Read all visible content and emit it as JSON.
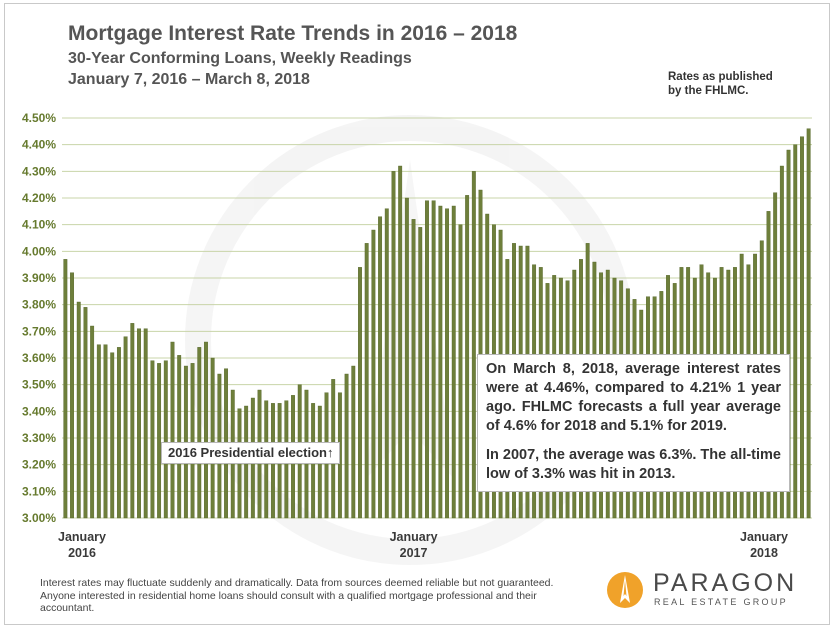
{
  "header": {
    "title": "Mortgage Interest Rate Trends in 2016 – 2018",
    "subtitle": "30-Year Conforming Loans, Weekly Readings",
    "date_range": "January 7, 2016 – March 8, 2018",
    "source_line1": "Rates as published",
    "source_line2": "by the FHLMC."
  },
  "annotations": {
    "note_paragraph_1": "On March 8, 2018, average interest rates were  at 4.46%, compared to 4.21% 1 year ago. FHLMC forecasts a full year average of 4.6% for 2018 and 5.1% for 2019.",
    "note_paragraph_2": "In 2007, the average was 6.3%. The all-time low of 3.3% was hit in 2013.",
    "election_label": "2016 Presidential election↑"
  },
  "footer": {
    "disclaimer": "Interest rates may fluctuate suddenly and dramatically. Data from sources deemed reliable but not guaranteed. Anyone interested in residential home loans should consult with a qualified mortgage professional and their accountant."
  },
  "logo": {
    "name": "PARAGON",
    "tagline": "REAL ESTATE GROUP"
  },
  "colors": {
    "bar": "#6e7f3b",
    "bar_edge": "#55652a",
    "gridline": "#c8d4a8",
    "tick_label": "#667a2e",
    "logo_orange": "#f0a22a"
  },
  "chart_data": {
    "type": "bar",
    "title": "Mortgage Interest Rate Trends in 2016 – 2018",
    "xlabel": "",
    "ylabel": "",
    "ylim": [
      3.0,
      4.5
    ],
    "yticks": [
      3.0,
      3.1,
      3.2,
      3.3,
      3.4,
      3.5,
      3.6,
      3.7,
      3.8,
      3.9,
      4.0,
      4.1,
      4.2,
      4.3,
      4.4,
      4.5
    ],
    "ytick_labels": [
      "3.00%",
      "3.10%",
      "3.20%",
      "3.30%",
      "3.40%",
      "3.50%",
      "3.60%",
      "3.70%",
      "3.80%",
      "3.90%",
      "4.00%",
      "4.10%",
      "4.20%",
      "4.30%",
      "4.40%",
      "4.50%"
    ],
    "x_labels": [
      {
        "line1": "January",
        "line2": "2016",
        "index": 0
      },
      {
        "line1": "January",
        "line2": "2017",
        "index": 52
      },
      {
        "line1": "January",
        "line2": "2018",
        "index": 104
      }
    ],
    "grid": true,
    "values": [
      3.97,
      3.92,
      3.81,
      3.79,
      3.72,
      3.65,
      3.65,
      3.62,
      3.64,
      3.68,
      3.73,
      3.71,
      3.71,
      3.59,
      3.58,
      3.59,
      3.66,
      3.61,
      3.57,
      3.58,
      3.64,
      3.66,
      3.6,
      3.54,
      3.56,
      3.48,
      3.41,
      3.42,
      3.45,
      3.48,
      3.44,
      3.43,
      3.43,
      3.44,
      3.46,
      3.5,
      3.48,
      3.43,
      3.42,
      3.47,
      3.52,
      3.47,
      3.54,
      3.57,
      3.94,
      4.03,
      4.08,
      4.13,
      4.16,
      4.3,
      4.32,
      4.2,
      4.12,
      4.09,
      4.19,
      4.19,
      4.17,
      4.16,
      4.17,
      4.1,
      4.21,
      4.3,
      4.23,
      4.14,
      4.1,
      4.08,
      3.97,
      4.03,
      4.02,
      4.02,
      3.95,
      3.94,
      3.88,
      3.91,
      3.9,
      3.89,
      3.93,
      3.97,
      4.03,
      3.96,
      3.92,
      3.93,
      3.9,
      3.89,
      3.86,
      3.82,
      3.78,
      3.83,
      3.83,
      3.85,
      3.91,
      3.88,
      3.94,
      3.94,
      3.9,
      3.95,
      3.92,
      3.9,
      3.94,
      3.93,
      3.94,
      3.99,
      3.95,
      3.99,
      4.04,
      4.15,
      4.22,
      4.32,
      4.38,
      4.4,
      4.43,
      4.46
    ]
  }
}
